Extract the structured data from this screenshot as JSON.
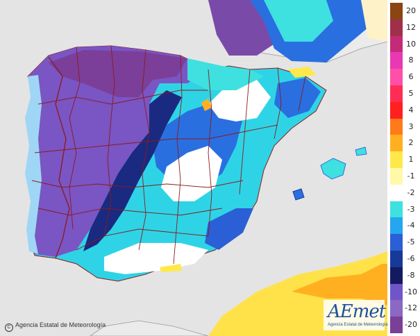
{
  "map": {
    "sea_color": "#e6e6e6",
    "land_color": "#ececec",
    "border_color": "#8b1a1a"
  },
  "legend": {
    "items": [
      {
        "label": "20",
        "color": "#8b4513"
      },
      {
        "label": "12",
        "color": "#a0304a"
      },
      {
        "label": "10",
        "color": "#c42a78"
      },
      {
        "label": "8",
        "color": "#e838b4"
      },
      {
        "label": "6",
        "color": "#ff4fa8"
      },
      {
        "label": "5",
        "color": "#ff2d55"
      },
      {
        "label": "4",
        "color": "#ff2020"
      },
      {
        "label": "3",
        "color": "#ff7a1a"
      },
      {
        "label": "2",
        "color": "#ffb020"
      },
      {
        "label": "1",
        "color": "#ffe94a"
      },
      {
        "label": "-1",
        "color": "#fff9a8"
      },
      {
        "label": "-2",
        "color": "#ffffff"
      },
      {
        "label": "-3",
        "color": "#3ee0e0"
      },
      {
        "label": "-4",
        "color": "#25a6ee"
      },
      {
        "label": "-5",
        "color": "#2a5fd6"
      },
      {
        "label": "-6",
        "color": "#173a98"
      },
      {
        "label": "-8",
        "color": "#151a60"
      },
      {
        "label": "-10",
        "color": "#6f55c8"
      },
      {
        "label": "-12",
        "color": "#8a68c4"
      },
      {
        "label": "-20",
        "color": "#7a3f96"
      }
    ],
    "extra_color": "#5a1e6e"
  },
  "copyright_text": "Agencia Estatal de Meteorología",
  "logo": {
    "word": "AEmet",
    "subtitle": "Agencia Estatal de Meteorología"
  }
}
